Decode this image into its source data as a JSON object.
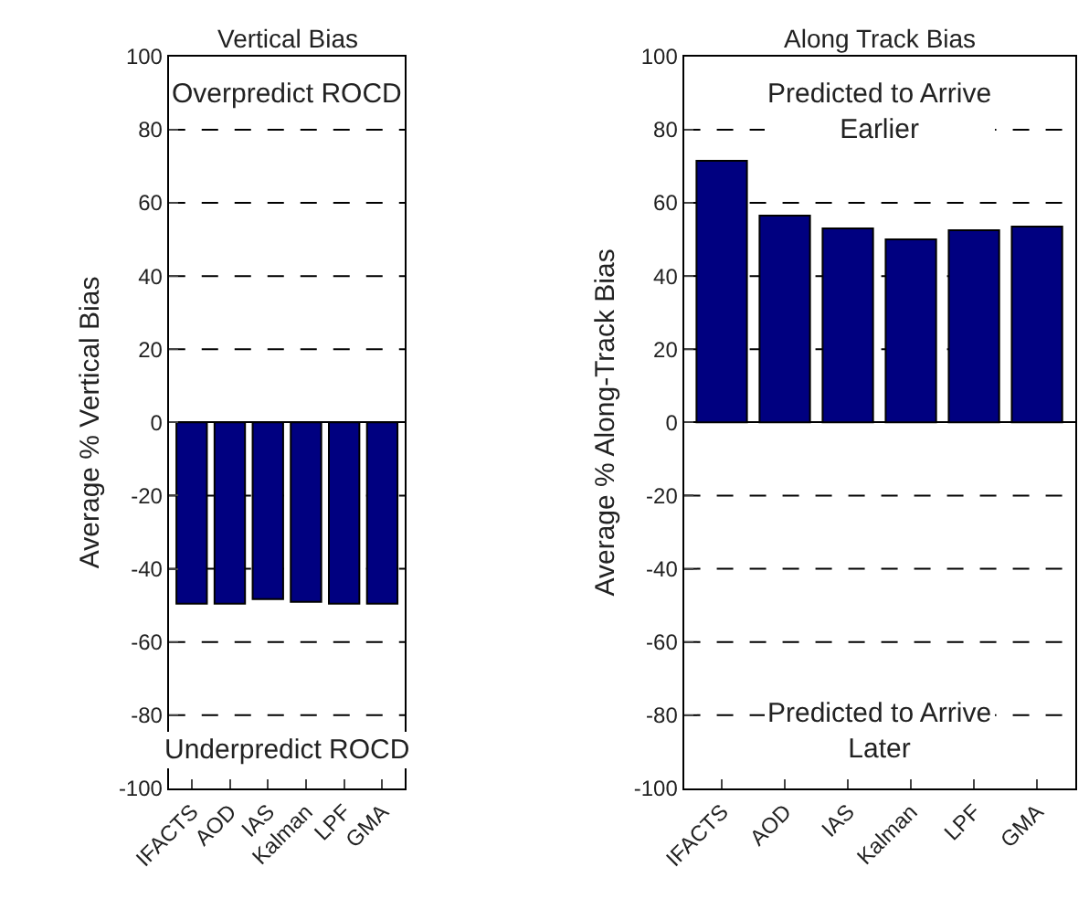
{
  "chart_data": [
    {
      "type": "bar",
      "title": "Vertical Bias",
      "ylabel": "Average % Vertical Bias",
      "categories": [
        "IFACTS",
        "AOD",
        "IAS",
        "Kalman",
        "LPF",
        "GMA"
      ],
      "values": [
        -49.5,
        -49.5,
        -48.3,
        -49,
        -49.5,
        -49.5
      ],
      "color": "#000080",
      "ylim": [
        -100,
        100
      ],
      "yticks": [
        -100,
        -80,
        -60,
        -40,
        -20,
        0,
        20,
        40,
        60,
        80,
        100
      ],
      "grid": "y",
      "annotations": [
        "Overpredict ROCD",
        "Underpredict ROCD"
      ]
    },
    {
      "type": "bar",
      "title": "Along Track Bias",
      "ylabel": "Average % Along-Track Bias",
      "categories": [
        "IFACTS",
        "AOD",
        "IAS",
        "Kalman",
        "LPF",
        "GMA"
      ],
      "values": [
        71.5,
        56.5,
        53,
        50,
        52.5,
        53.5
      ],
      "color": "#000080",
      "ylim": [
        -100,
        100
      ],
      "yticks": [
        -100,
        -80,
        -60,
        -40,
        -20,
        0,
        20,
        40,
        60,
        80,
        100
      ],
      "grid": "y",
      "annotations": [
        "Predicted to Arrive\nEarlier",
        "Predicted to Arrive\nLater"
      ]
    }
  ]
}
